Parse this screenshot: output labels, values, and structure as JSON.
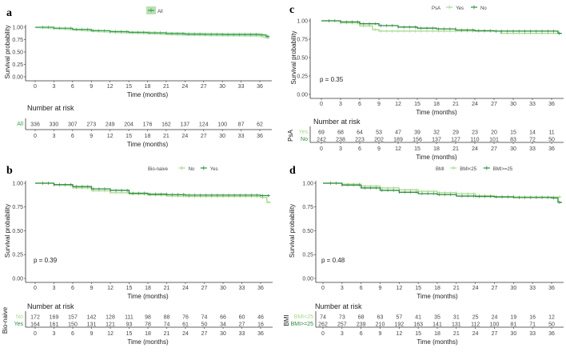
{
  "chart_data": [
    {
      "type": "line",
      "panel": "a",
      "title": "",
      "xlabel": "Time (months)",
      "ylabel": "Survival probability",
      "xticks": [
        "0",
        "3",
        "6",
        "9",
        "12",
        "15",
        "18",
        "21",
        "24",
        "27",
        "30",
        "33",
        "36"
      ],
      "yticks": [
        "0.00",
        "0.25",
        "0.50",
        "0.75",
        "1.00"
      ],
      "xlim": [
        0,
        37.5
      ],
      "ylim": [
        0,
        1
      ],
      "legend_title": "",
      "legend_position": "top",
      "pvalue": "",
      "risk_title": "Number at risk",
      "risk_ylabel": "",
      "series": [
        {
          "name": "All",
          "color": "#3aa14a",
          "ci": true,
          "x": [
            0,
            3,
            6,
            9,
            12,
            15,
            18,
            21,
            24,
            27,
            30,
            33,
            36,
            37,
            37.5
          ],
          "y": [
            1,
            0.98,
            0.955,
            0.93,
            0.91,
            0.895,
            0.885,
            0.87,
            0.86,
            0.855,
            0.85,
            0.85,
            0.845,
            0.81,
            0.8
          ],
          "at_risk": [
            "336",
            "330",
            "307",
            "273",
            "249",
            "204",
            "176",
            "162",
            "137",
            "124",
            "100",
            "87",
            "62"
          ]
        }
      ]
    },
    {
      "type": "line",
      "panel": "c",
      "xlabel": "Time (months)",
      "ylabel": "Survival probability",
      "xticks": [
        "0",
        "3",
        "6",
        "9",
        "12",
        "15",
        "18",
        "21",
        "24",
        "27",
        "30",
        "33",
        "36"
      ],
      "yticks": [
        "0.00",
        "0.25",
        "0.50",
        "0.75",
        "1.00"
      ],
      "xlim": [
        0,
        37.5
      ],
      "ylim": [
        0,
        1
      ],
      "legend_title": "PsA",
      "legend_position": "top",
      "pvalue": "p = 0.35",
      "risk_title": "Number at risk",
      "risk_ylabel": "PsA",
      "series": [
        {
          "name": "Yes",
          "color": "#a6d98b",
          "x": [
            0,
            3,
            6,
            8,
            9,
            12,
            15,
            18,
            21,
            24,
            27,
            28,
            30,
            33,
            36,
            37.5
          ],
          "y": [
            1,
            0.97,
            0.93,
            0.88,
            0.86,
            0.86,
            0.86,
            0.86,
            0.86,
            0.86,
            0.86,
            0.83,
            0.83,
            0.83,
            0.83,
            0.83
          ],
          "at_risk": [
            "69",
            "68",
            "64",
            "53",
            "47",
            "39",
            "32",
            "29",
            "23",
            "20",
            "15",
            "14",
            "11"
          ]
        },
        {
          "name": "No",
          "color": "#2e8b3e",
          "x": [
            0,
            3,
            6,
            9,
            12,
            15,
            18,
            21,
            24,
            27,
            30,
            33,
            36,
            37,
            37.5
          ],
          "y": [
            1,
            0.985,
            0.96,
            0.935,
            0.915,
            0.9,
            0.89,
            0.875,
            0.865,
            0.86,
            0.86,
            0.86,
            0.86,
            0.83,
            0.82
          ],
          "at_risk": [
            "242",
            "238",
            "223",
            "202",
            "189",
            "156",
            "137",
            "127",
            "110",
            "101",
            "83",
            "72",
            "50"
          ]
        }
      ]
    },
    {
      "type": "line",
      "panel": "b",
      "xlabel": "Time (months)",
      "ylabel": "Survival probability",
      "xticks": [
        "0",
        "3",
        "6",
        "9",
        "12",
        "15",
        "18",
        "21",
        "24",
        "27",
        "30",
        "33",
        "36"
      ],
      "yticks": [
        "0.00",
        "0.25",
        "0.50",
        "0.75",
        "1.00"
      ],
      "xlim": [
        0,
        37.5
      ],
      "ylim": [
        0,
        1
      ],
      "legend_title": "Bio-naive",
      "legend_position": "top",
      "pvalue": "p = 0.39",
      "risk_title": "Number at risk",
      "risk_ylabel": "Bio-naive",
      "series": [
        {
          "name": "No",
          "color": "#a6d98b",
          "x": [
            0,
            3,
            6,
            9,
            12,
            15,
            18,
            21,
            24,
            27,
            30,
            33,
            36,
            37,
            37.5
          ],
          "y": [
            1,
            0.98,
            0.95,
            0.92,
            0.9,
            0.885,
            0.875,
            0.865,
            0.86,
            0.86,
            0.86,
            0.86,
            0.85,
            0.8,
            0.79
          ],
          "at_risk": [
            "172",
            "169",
            "157",
            "142",
            "128",
            "111",
            "98",
            "88",
            "76",
            "74",
            "66",
            "60",
            "46"
          ]
        },
        {
          "name": "Yes",
          "color": "#2e8b3e",
          "x": [
            0,
            3,
            6,
            9,
            12,
            15,
            18,
            21,
            24,
            27,
            30,
            33,
            36,
            37.5
          ],
          "y": [
            1,
            0.985,
            0.965,
            0.94,
            0.925,
            0.895,
            0.885,
            0.88,
            0.875,
            0.875,
            0.875,
            0.875,
            0.87,
            0.87
          ],
          "at_risk": [
            "164",
            "161",
            "150",
            "131",
            "121",
            "93",
            "78",
            "74",
            "61",
            "50",
            "34",
            "27",
            "16"
          ]
        }
      ]
    },
    {
      "type": "line",
      "panel": "d",
      "xlabel": "Time (months)",
      "ylabel": "Survival probability",
      "xticks": [
        "0",
        "3",
        "6",
        "9",
        "12",
        "15",
        "18",
        "21",
        "24",
        "27",
        "30",
        "33",
        "36"
      ],
      "yticks": [
        "0.00",
        "0.25",
        "0.50",
        "0.75",
        "1.00"
      ],
      "xlim": [
        0,
        37.5
      ],
      "ylim": [
        0,
        1
      ],
      "legend_title": "BMI",
      "legend_position": "top",
      "pvalue": "p = 0.48",
      "risk_title": "Number at risk",
      "risk_ylabel": "BMI",
      "series": [
        {
          "name": "BMI<25",
          "color": "#a6d98b",
          "x": [
            0,
            3,
            6,
            9,
            12,
            15,
            18,
            21,
            24,
            27,
            30,
            33,
            36,
            37.5
          ],
          "y": [
            1,
            0.99,
            0.97,
            0.95,
            0.93,
            0.915,
            0.9,
            0.89,
            0.87,
            0.86,
            0.855,
            0.855,
            0.855,
            0.855
          ],
          "at_risk": [
            "74",
            "73",
            "68",
            "63",
            "57",
            "41",
            "35",
            "31",
            "25",
            "24",
            "19",
            "16",
            "12"
          ]
        },
        {
          "name": "BMI>=25",
          "color": "#2e8b3e",
          "x": [
            0,
            3,
            6,
            9,
            12,
            15,
            18,
            21,
            24,
            27,
            30,
            33,
            36,
            37,
            37.5
          ],
          "y": [
            1,
            0.98,
            0.95,
            0.925,
            0.905,
            0.89,
            0.88,
            0.865,
            0.86,
            0.855,
            0.85,
            0.85,
            0.845,
            0.8,
            0.79
          ],
          "at_risk": [
            "262",
            "257",
            "239",
            "210",
            "192",
            "163",
            "141",
            "131",
            "112",
            "100",
            "81",
            "71",
            "50"
          ]
        }
      ]
    }
  ],
  "panel_letters": [
    "a",
    "c",
    "b",
    "d"
  ]
}
